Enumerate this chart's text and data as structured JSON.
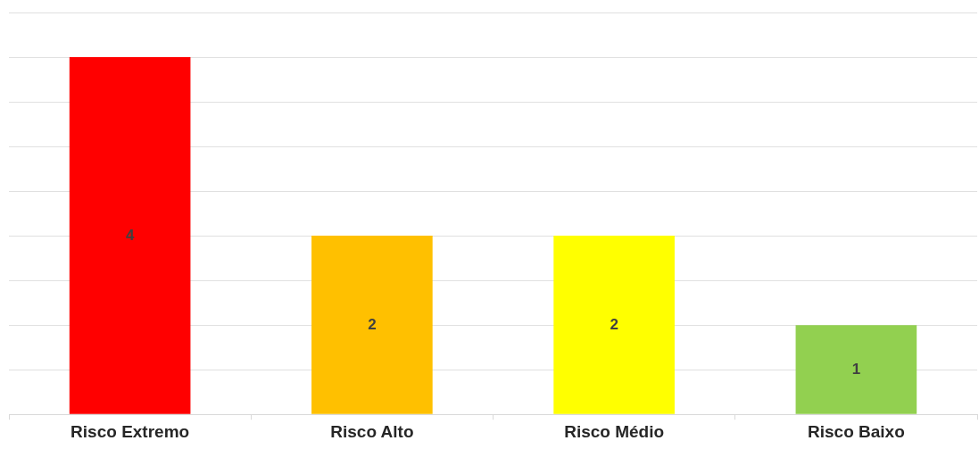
{
  "chart_data": {
    "type": "bar",
    "categories": [
      "Risco Extremo",
      "Risco Alto",
      "Risco Médio",
      "Risco Baixo"
    ],
    "values": [
      4,
      2,
      2,
      1
    ],
    "colors": [
      "#ff0000",
      "#ffc000",
      "#ffff00",
      "#92d050"
    ],
    "ylim": [
      0,
      4.5
    ],
    "yticks": [
      {
        "value": 0,
        "label": null
      },
      {
        "value": 0.5,
        "label": null
      },
      {
        "value": 1,
        "label": null
      },
      {
        "value": 1.5,
        "label": null
      },
      {
        "value": 2,
        "label": null
      },
      {
        "value": 2.5,
        "label": null
      },
      {
        "value": 3,
        "label": null
      },
      {
        "value": 3.5,
        "label": null
      },
      {
        "value": 4,
        "label": null
      },
      {
        "value": 4.5,
        "label": null
      }
    ],
    "tick_labels": "x",
    "grid": "y",
    "data_labels": true,
    "legend": false
  }
}
